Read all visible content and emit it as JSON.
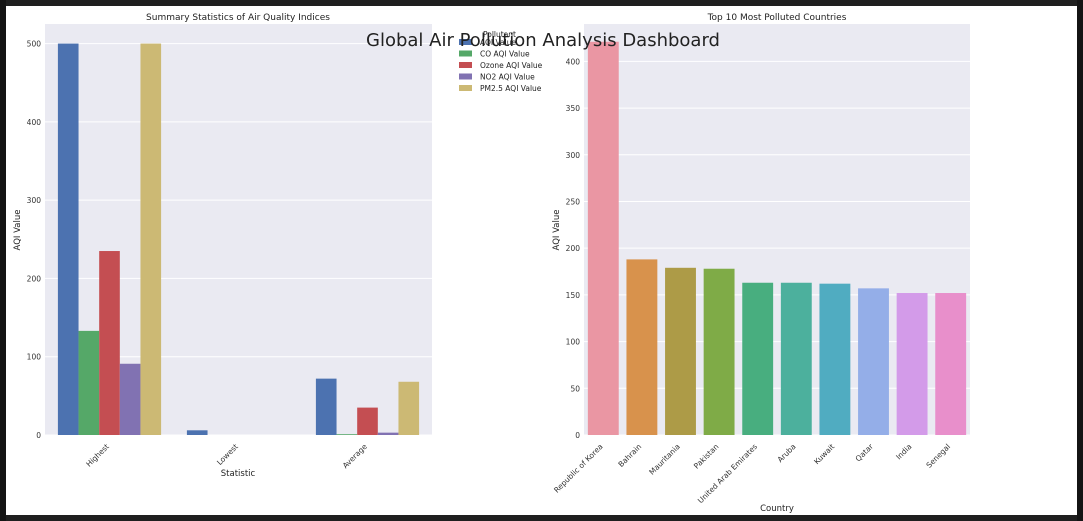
{
  "dashboard": {
    "title": "Global Air Pollution Analysis Dashboard"
  },
  "chart_data": [
    {
      "type": "bar",
      "title": "Summary Statistics of Air Quality Indices",
      "xlabel": "Statistic",
      "ylabel": "AQI Value",
      "categories": [
        "Highest",
        "Lowest",
        "Average"
      ],
      "ylim": [
        0,
        525
      ],
      "yticks": [
        0,
        100,
        200,
        300,
        400,
        500
      ],
      "grid": true,
      "legend_title": "Pollutant",
      "legend_position": "outside-right",
      "series": [
        {
          "name": "AQI Value",
          "color": "#4c72b0",
          "values": [
            500,
            6,
            72
          ]
        },
        {
          "name": "CO AQI Value",
          "color": "#55a868",
          "values": [
            133,
            0,
            1
          ]
        },
        {
          "name": "Ozone AQI Value",
          "color": "#c44e52",
          "values": [
            235,
            0,
            35
          ]
        },
        {
          "name": "NO2 AQI Value",
          "color": "#8172b2",
          "values": [
            91,
            0,
            3
          ]
        },
        {
          "name": "PM2.5 AQI Value",
          "color": "#ccb974",
          "values": [
            500,
            0,
            68
          ]
        }
      ]
    },
    {
      "type": "bar",
      "title": "Top 10 Most Polluted Countries",
      "xlabel": "Country",
      "ylabel": "AQI Value",
      "categories": [
        "Republic of Korea",
        "Bahrain",
        "Mauritania",
        "Pakistan",
        "United Arab Emirates",
        "Aruba",
        "Kuwait",
        "Qatar",
        "India",
        "Senegal"
      ],
      "values": [
        421,
        188,
        179,
        178,
        163,
        163,
        162,
        157,
        152,
        152
      ],
      "colors": [
        "#ea96a3",
        "#d8924c",
        "#ad9b47",
        "#7fab47",
        "#48ae7f",
        "#4cb09d",
        "#50acc1",
        "#94aee8",
        "#d39be9",
        "#e88fcb"
      ],
      "ylim": [
        0,
        440
      ],
      "yticks": [
        0,
        50,
        100,
        150,
        200,
        250,
        300,
        350,
        400
      ],
      "grid": true
    }
  ]
}
